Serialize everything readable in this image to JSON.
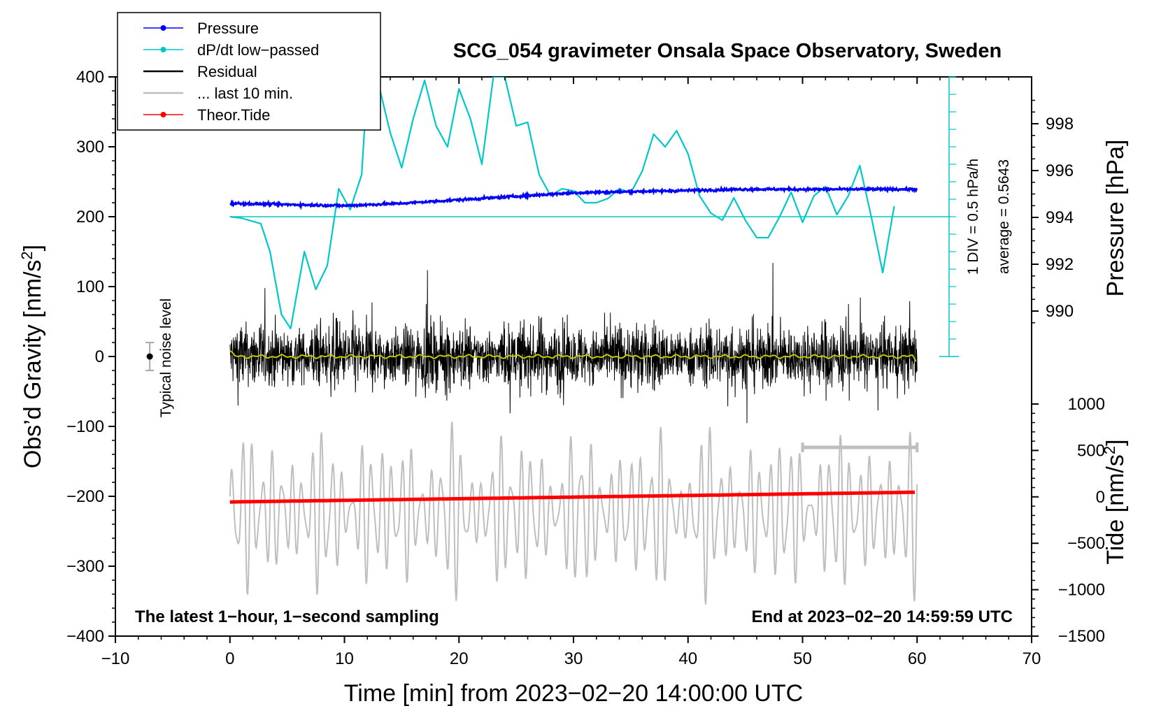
{
  "chart_data": {
    "type": "line",
    "title": "SCG_054 gravimeter Onsala Space Observatory, Sweden",
    "xlabel": "Time [min] from 2023−02−20 14:00:00 UTC",
    "xlim": [
      -10,
      70
    ],
    "x_ticks": [
      -10,
      0,
      10,
      20,
      30,
      40,
      50,
      60,
      70
    ],
    "x_tick_labels": [
      "−10",
      "0",
      "10",
      "20",
      "30",
      "40",
      "50",
      "60",
      "70"
    ],
    "ylabel_left": "Obs’d Gravity [nm/s",
    "ylabel_left_sup": "2",
    "ylabel_left_end": "]",
    "ylim_left": [
      -400,
      400
    ],
    "y_ticks_left": [
      400,
      300,
      200,
      100,
      0,
      -100,
      -200,
      -300,
      -400
    ],
    "y_tick_labels_left": [
      "400",
      "300",
      "200",
      "100",
      "0",
      "−100",
      "−200",
      "−300",
      "−400"
    ],
    "ylabel_pressure": "Pressure [hPa]",
    "y_ticks_pressure": [
      998,
      996,
      994,
      992,
      990
    ],
    "y_tick_labels_pressure": [
      "998",
      "996",
      "994",
      "992",
      "990"
    ],
    "ylabel_tide": "Tide [nm/s",
    "ylabel_tide_sup": "2",
    "ylabel_tide_end": "]",
    "y_ticks_tide": [
      1000,
      500,
      0,
      -500,
      -1000,
      -1500
    ],
    "y_tick_labels_tide": [
      "1000",
      "500",
      "0",
      "−500",
      "−1000",
      "−1500"
    ],
    "dpdt_scale_label": "1 DIV = 0.5 hPa/h",
    "dpdt_average_label": "average = 0.5643",
    "noise_label": "Typical noise level",
    "note_left": "The latest 1−hour, 1−second sampling",
    "note_right": "End at 2023−02−20 14:59:59 UTC",
    "legend": [
      {
        "label": "Pressure",
        "color": "#0000ff",
        "marker": true
      },
      {
        "label": "dP/dt low−passed",
        "color": "#00c8c8",
        "marker": true
      },
      {
        "label": "Residual",
        "color": "#000000",
        "marker": false
      },
      {
        "label": "... last 10 min.",
        "color": "#bebebe",
        "marker": false
      },
      {
        "label": "Theor.Tide",
        "color": "#ff0000",
        "marker": true
      }
    ],
    "colors": {
      "pressure": "#0000ff",
      "dpdt": "#00c8c8",
      "residual": "#000000",
      "last10": "#bebebe",
      "tide": "#ff0000",
      "residual_smooth": "#c8c800"
    },
    "series": [
      {
        "name": "Pressure",
        "units": "hPa",
        "x": [
          0,
          5,
          10,
          15,
          20,
          25,
          30,
          35,
          40,
          45,
          50,
          55,
          60
        ],
        "values": [
          994.6,
          994.55,
          994.5,
          994.6,
          994.75,
          994.9,
          995.05,
          995.1,
          995.15,
          995.2,
          995.2,
          995.2,
          995.2
        ]
      },
      {
        "name": "dP/dt low-passed",
        "units": "left-axis plot units (1 DIV = 0.5 hPa/h)",
        "x": [
          0,
          1,
          2.7,
          3.5,
          4.5,
          5.3,
          6.5,
          7.5,
          8.5,
          9.5,
          10.5,
          11.5,
          12,
          13,
          14,
          15,
          16,
          17,
          18,
          19,
          20,
          21,
          22,
          23,
          24,
          25,
          26,
          27,
          28,
          29,
          30,
          31,
          32,
          33,
          34,
          35,
          36,
          37,
          38,
          39,
          40,
          41,
          42,
          43,
          44,
          45,
          46,
          47,
          48,
          49,
          50,
          51,
          52,
          53,
          54,
          55,
          56,
          57,
          58
        ],
        "values": [
          200,
          198,
          190,
          150,
          60,
          40,
          150,
          96,
          130,
          240,
          210,
          260,
          390,
          388,
          320,
          270,
          340,
          395,
          330,
          300,
          383,
          340,
          275,
          400,
          400,
          330,
          335,
          260,
          230,
          240,
          237,
          220,
          220,
          226,
          240,
          234,
          265,
          318,
          300,
          323,
          290,
          230,
          205,
          195,
          227,
          195,
          170,
          170,
          200,
          235,
          192,
          230,
          243,
          203,
          230,
          273,
          200,
          120,
          215
        ]
      },
      {
        "name": "Residual",
        "units": "nm/s2",
        "x_range": [
          0,
          60
        ],
        "typical_amplitude": 60,
        "max_excursion": 170,
        "smoothed_level": 0
      },
      {
        "name": "... last 10 min.",
        "units": "nm/s2",
        "x": [
          50,
          60
        ],
        "values": [
          -130,
          -130
        ]
      },
      {
        "name": "Theor.Tide",
        "units": "nm/s2 (right tide axis)",
        "x": [
          0,
          60
        ],
        "values": [
          -55,
          50
        ]
      }
    ],
    "background_trace": {
      "name": "grey oscillating trace",
      "units": "left-axis plot units",
      "x_range": [
        0,
        60
      ],
      "center": -222,
      "amplitude": 100
    },
    "noise_bar": {
      "x": -7,
      "center": 0,
      "half_range": 20
    },
    "legend_position": "top-left"
  }
}
